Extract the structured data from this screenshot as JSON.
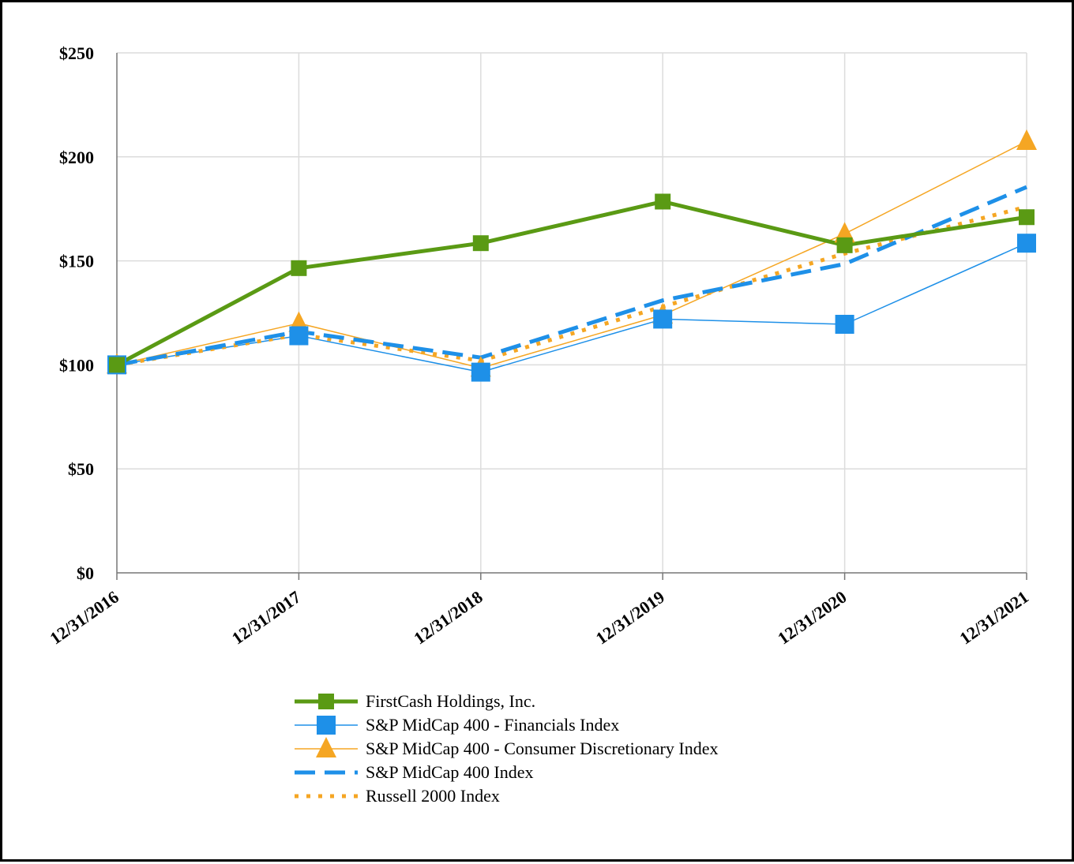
{
  "chart_data": {
    "type": "line",
    "title": "",
    "xlabel": "",
    "ylabel": "",
    "categories": [
      "12/31/2016",
      "12/31/2017",
      "12/31/2018",
      "12/31/2019",
      "12/31/2020",
      "12/31/2021"
    ],
    "y_ticks": [
      "$0",
      "$50",
      "$100",
      "$150",
      "$200",
      "$250"
    ],
    "y_tick_values": [
      0,
      50,
      100,
      150,
      200,
      250
    ],
    "ylim": [
      0,
      250
    ],
    "grid": true,
    "legend_position": "bottom",
    "series": [
      {
        "name": "FirstCash Holdings, Inc.",
        "values": [
          100,
          146.5,
          158.5,
          178.5,
          157.5,
          171
        ],
        "color": "#5a9a14",
        "style": "solid-thick",
        "marker": "square"
      },
      {
        "name": "S&P MidCap 400 - Financials Index",
        "values": [
          100,
          114,
          96.5,
          122,
          119.5,
          158.5
        ],
        "color": "#1e90e8",
        "style": "solid-thin",
        "marker": "square"
      },
      {
        "name": "S&P MidCap 400 - Consumer Discretionary Index",
        "values": [
          100,
          120,
          98.5,
          124,
          163,
          207.5
        ],
        "color": "#f5a623",
        "style": "solid-thin",
        "marker": "triangle"
      },
      {
        "name": "S&P MidCap 400 Index",
        "values": [
          100,
          116,
          103.5,
          131,
          148.5,
          185.5
        ],
        "color": "#1e90e8",
        "style": "dashed",
        "marker": "none"
      },
      {
        "name": "Russell 2000 Index",
        "values": [
          100,
          114.5,
          102,
          128,
          153.5,
          176
        ],
        "color": "#f5a623",
        "style": "dotted",
        "marker": "none"
      }
    ]
  }
}
